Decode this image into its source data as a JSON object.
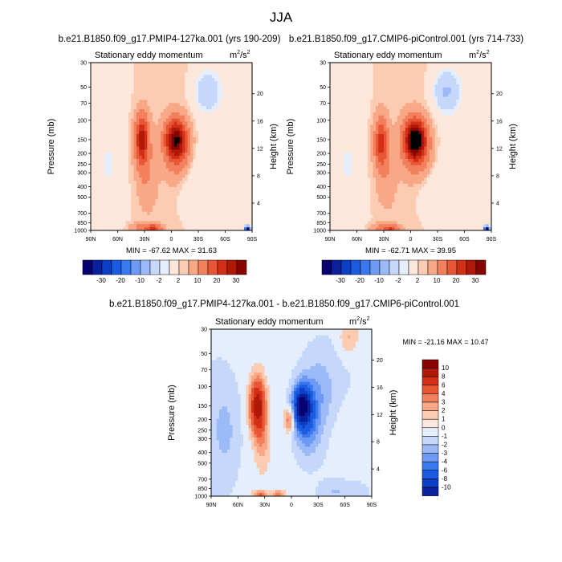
{
  "title": "JJA",
  "chart_data": [
    {
      "type": "heatmap",
      "title": "b.e21.B1850.f09_g17.PMIP4-127ka.001 (yrs 190-209)",
      "subtitle": "Stationary eddy momentum",
      "units": "m",
      "units_sup": "2",
      "units_tail": "/s",
      "units_sup2": "2",
      "xlabel": "",
      "ylabel": "Pressure (mb)",
      "ylabel_right": "Height (km)",
      "x_ticks": [
        "90N",
        "60N",
        "30N",
        "0",
        "30S",
        "60S",
        "90S"
      ],
      "y_ticks": [
        "30",
        "50",
        "70",
        "100",
        "150",
        "200",
        "250",
        "300",
        "400",
        "500",
        "700",
        "850",
        "1000"
      ],
      "y2_ticks": [
        "20",
        "16",
        "12",
        "8",
        "4"
      ],
      "min_max_text": "MIN = -67.62   MAX =  31.63",
      "min": -67.62,
      "max": 31.63,
      "field_blobs": [
        {
          "lat": 33,
          "p": 150,
          "sx": 5,
          "sy": 0.33,
          "v": 22
        },
        {
          "lat": 28,
          "p": 300,
          "sx": 7,
          "sy": 0.45,
          "v": 4
        },
        {
          "lat": -5,
          "p": 150,
          "sx": 8,
          "sy": 0.28,
          "v": 28
        },
        {
          "lat": -8,
          "p": 220,
          "sx": 10,
          "sy": 0.35,
          "v": 5
        },
        {
          "lat": -40,
          "p": 55,
          "sx": 10,
          "sy": 0.3,
          "v": -5
        },
        {
          "lat": -25,
          "p": 350,
          "sx": 14,
          "sy": 0.5,
          "v": -2
        },
        {
          "lat": 70,
          "p": 250,
          "sx": 6,
          "sy": 0.3,
          "v": -2
        },
        {
          "lat": 20,
          "p": 960,
          "sx": 6,
          "sy": 0.05,
          "v": 14
        },
        {
          "lat": 33,
          "p": 950,
          "sx": 8,
          "sy": 0.07,
          "v": 6
        },
        {
          "lat": -85,
          "p": 980,
          "sx": 2,
          "sy": 0.04,
          "v": -40
        }
      ],
      "field_base": 1.5
    },
    {
      "type": "heatmap",
      "title": "b.e21.B1850.f09_g17.CMIP6-piControl.001 (yrs 714-733)",
      "subtitle": "Stationary eddy momentum",
      "units": "m",
      "units_sup": "2",
      "units_tail": "/s",
      "units_sup2": "2",
      "xlabel": "",
      "ylabel": "Pressure (mb)",
      "ylabel_right": "Height (km)",
      "x_ticks": [
        "90N",
        "60N",
        "30N",
        "0",
        "30S",
        "60S",
        "90S"
      ],
      "y_ticks": [
        "30",
        "50",
        "70",
        "100",
        "150",
        "200",
        "250",
        "300",
        "400",
        "500",
        "700",
        "850",
        "1000"
      ],
      "y2_ticks": [
        "20",
        "16",
        "12",
        "8",
        "4"
      ],
      "min_max_text": "MIN = -62.71   MAX =  39.95",
      "min": -62.71,
      "max": 39.95,
      "field_blobs": [
        {
          "lat": 33,
          "p": 160,
          "sx": 5,
          "sy": 0.33,
          "v": 16
        },
        {
          "lat": 28,
          "p": 300,
          "sx": 7,
          "sy": 0.45,
          "v": 3
        },
        {
          "lat": -5,
          "p": 150,
          "sx": 8,
          "sy": 0.28,
          "v": 36
        },
        {
          "lat": -10,
          "p": 220,
          "sx": 12,
          "sy": 0.35,
          "v": 5
        },
        {
          "lat": -40,
          "p": 55,
          "sx": 10,
          "sy": 0.3,
          "v": -6
        },
        {
          "lat": -25,
          "p": 350,
          "sx": 14,
          "sy": 0.5,
          "v": -2
        },
        {
          "lat": 70,
          "p": 250,
          "sx": 6,
          "sy": 0.3,
          "v": -2
        },
        {
          "lat": 22,
          "p": 960,
          "sx": 6,
          "sy": 0.05,
          "v": 12
        },
        {
          "lat": 33,
          "p": 950,
          "sx": 8,
          "sy": 0.07,
          "v": 5
        },
        {
          "lat": -85,
          "p": 980,
          "sx": 2,
          "sy": 0.04,
          "v": -40
        }
      ],
      "field_base": 1.5
    },
    {
      "type": "heatmap",
      "title": "b.e21.B1850.f09_g17.PMIP4-127ka.001 - b.e21.B1850.f09_g17.CMIP6-piControl.001",
      "subtitle": "Stationary eddy momentum",
      "units": "m",
      "units_sup": "2",
      "units_tail": "/s",
      "units_sup2": "2",
      "xlabel": "",
      "ylabel": "Pressure (mb)",
      "ylabel_right": "Height (km)",
      "x_ticks": [
        "90N",
        "60N",
        "30N",
        "0",
        "30S",
        "60S",
        "90S"
      ],
      "y_ticks": [
        "30",
        "50",
        "70",
        "100",
        "150",
        "200",
        "250",
        "300",
        "400",
        "500",
        "700",
        "850",
        "1000"
      ],
      "y2_ticks": [
        "20",
        "16",
        "12",
        "8",
        "4"
      ],
      "min_max_text": "MIN = -21.16   MAX =  10.47",
      "min": -21.16,
      "max": 10.47,
      "field_blobs": [
        {
          "lat": 38,
          "p": 150,
          "sx": 6,
          "sy": 0.4,
          "v": 9
        },
        {
          "lat": 33,
          "p": 320,
          "sx": 6,
          "sy": 0.45,
          "v": 2
        },
        {
          "lat": -12,
          "p": 150,
          "sx": 7,
          "sy": 0.3,
          "v": -10
        },
        {
          "lat": -18,
          "p": 230,
          "sx": 10,
          "sy": 0.45,
          "v": -3
        },
        {
          "lat": 2,
          "p": 200,
          "sx": 4,
          "sy": 0.18,
          "v": 4
        },
        {
          "lat": -30,
          "p": 110,
          "sx": 14,
          "sy": 0.55,
          "v": -2
        },
        {
          "lat": 75,
          "p": 250,
          "sx": 10,
          "sy": 0.6,
          "v": -1.5
        },
        {
          "lat": -58,
          "p": 300,
          "sx": 10,
          "sy": 0.5,
          "v": 0.6
        },
        {
          "lat": -65,
          "p": 35,
          "sx": 8,
          "sy": 0.25,
          "v": 2
        },
        {
          "lat": 35,
          "p": 960,
          "sx": 6,
          "sy": 0.05,
          "v": 4
        },
        {
          "lat": 15,
          "p": 950,
          "sx": 5,
          "sy": 0.06,
          "v": 3
        },
        {
          "lat": -50,
          "p": 900,
          "sx": 12,
          "sy": 0.15,
          "v": -1.2
        }
      ],
      "field_base": 0.4
    }
  ],
  "colorbar_top": {
    "labels": [
      "-30",
      "-20",
      "-10",
      "-2",
      "2",
      "10",
      "20",
      "30"
    ],
    "levels": [
      -35,
      -30,
      -25,
      -20,
      -15,
      -10,
      -5,
      -2,
      -1,
      1,
      2,
      5,
      10,
      15,
      20,
      25,
      30
    ]
  },
  "colorbar_diff": {
    "labels": [
      "10",
      "8",
      "6",
      "4",
      "3",
      "2",
      "1",
      "0",
      "-1",
      "-2",
      "-3",
      "-4",
      "-6",
      "-8",
      "-10"
    ],
    "levels": [
      10,
      8,
      6,
      4,
      3,
      2,
      1,
      0,
      -1,
      -2,
      -3,
      -4,
      -6,
      -8,
      -10
    ]
  },
  "palette": [
    "#08006f",
    "#0b209c",
    "#0d3ec6",
    "#1a5be0",
    "#3a78ef",
    "#6d9af4",
    "#9bbaf7",
    "#c6d8fa",
    "#e4eefc",
    "#fde7da",
    "#fbcbb2",
    "#f8a886",
    "#f3805c",
    "#e85635",
    "#d32f17",
    "#b01808",
    "#860500"
  ]
}
